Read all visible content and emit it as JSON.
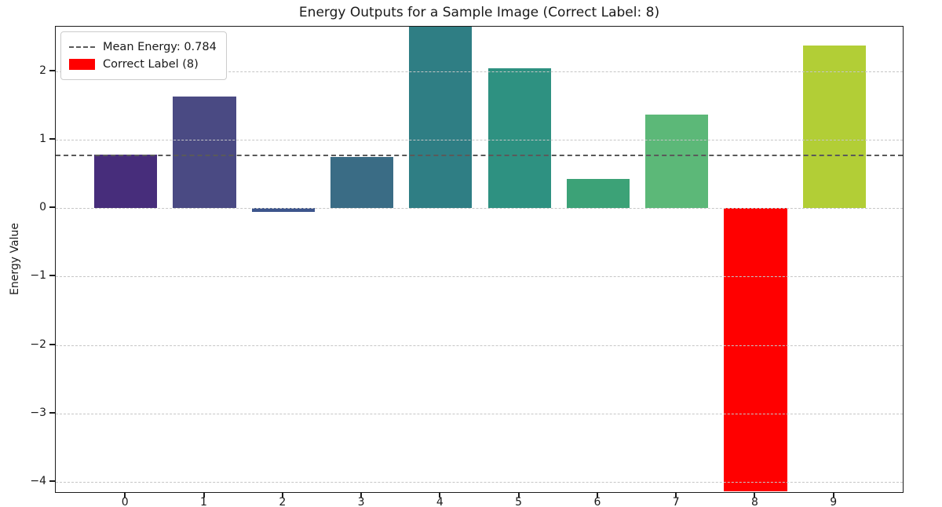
{
  "chart_data": {
    "type": "bar",
    "title": "Energy Outputs for a Sample Image (Correct Label: 8)",
    "xlabel": "",
    "ylabel": "Energy Value",
    "categories": [
      "0",
      "1",
      "2",
      "3",
      "4",
      "5",
      "6",
      "7",
      "8",
      "9"
    ],
    "values": [
      0.78,
      1.63,
      -0.05,
      0.75,
      2.65,
      2.04,
      0.43,
      1.37,
      -4.14,
      2.38
    ],
    "bar_colors": [
      "#472d7b",
      "#4a4a83",
      "#3d558c",
      "#3a6c85",
      "#2f7e84",
      "#2e9181",
      "#3ca277",
      "#5cb878",
      "#ff0000",
      "#b2ce36"
    ],
    "correct_label_index": 8,
    "correct_label_color": "#ff0000",
    "mean_energy": 0.784,
    "mean_line": {
      "value": 0.784,
      "color": "#5a5a5a",
      "style": "dashed"
    },
    "yticks": [
      2,
      1,
      0,
      -1,
      -2,
      -3,
      -4
    ],
    "ylim": [
      -4.17,
      2.65
    ],
    "xlim": [
      -0.89,
      9.89
    ],
    "bar_width": 0.8,
    "grid": true,
    "grid_color": "#c6c6c6",
    "legend_position": "upper-left",
    "legend": {
      "items": [
        {
          "label": "Mean Energy: 0.784",
          "type": "dashed-line",
          "color": "#5a5a5a"
        },
        {
          "label": "Correct Label (8)",
          "type": "patch",
          "color": "#ff0000"
        }
      ]
    }
  }
}
